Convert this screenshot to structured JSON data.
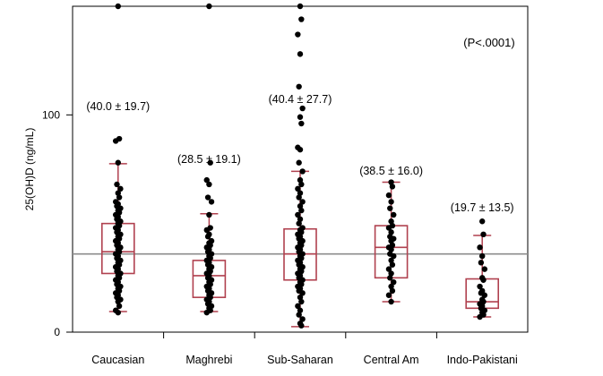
{
  "chart_data": {
    "type": "box",
    "ylabel": "25(OH)D (ng/mL)",
    "ylim": [
      0,
      150
    ],
    "y_ticks": [
      0,
      100
    ],
    "categories": [
      "Caucasian",
      "Maghrebi",
      "Sub-Saharan",
      "Central Am",
      "Indo-Pakistani"
    ],
    "annotation_text": "(P<.0001)",
    "reference_line": 36,
    "mean_sd_labels": [
      "(40.0 ± 19.7)",
      "(28.5 ± 19.1)",
      "(40.4 ± 27.7)",
      "(38.5 ± 16.0)",
      "(19.7 ± 13.5)"
    ],
    "groups": [
      {
        "category": "Caucasian",
        "whisker_low": 9.5,
        "q1": 27,
        "median": 37,
        "q3": 50,
        "whisker_high": 77.5,
        "points": [
          150,
          89,
          88,
          78,
          68,
          66,
          64,
          62,
          60,
          59,
          58,
          57,
          56,
          55,
          54,
          53,
          52,
          51,
          50,
          49,
          48,
          47,
          46,
          45,
          44,
          43,
          42,
          41,
          40,
          39,
          38,
          37,
          36,
          35,
          34,
          33,
          32,
          31,
          30,
          29,
          28,
          27,
          26,
          25,
          24,
          23,
          22,
          21,
          20,
          19,
          18,
          17,
          16,
          15,
          14,
          12,
          10,
          9
        ]
      },
      {
        "category": "Maghrebi",
        "whisker_low": 9.5,
        "q1": 16,
        "median": 26,
        "q3": 33,
        "whisker_high": 54.5,
        "points": [
          150,
          78,
          70,
          68,
          62,
          60,
          54,
          48,
          47,
          45,
          44,
          42,
          41,
          40,
          39,
          38,
          37,
          36,
          35,
          34,
          33,
          32,
          31,
          30,
          29,
          28,
          27,
          26,
          25,
          24,
          23,
          22,
          21,
          20,
          19,
          18,
          17,
          16,
          15,
          14,
          13,
          12,
          11,
          10,
          9
        ]
      },
      {
        "category": "Sub-Saharan",
        "whisker_low": 2.5,
        "q1": 24,
        "median": 36,
        "q3": 47.5,
        "whisker_high": 74,
        "points": [
          150,
          144,
          137,
          128,
          113,
          103,
          99,
          96,
          85,
          84,
          78,
          74,
          70,
          68,
          66,
          64,
          62,
          60,
          58,
          56,
          54,
          52,
          50,
          48,
          47,
          46,
          45,
          44,
          43,
          42,
          41,
          40,
          39,
          38,
          37,
          36,
          35,
          34,
          33,
          32,
          31,
          30,
          29,
          28,
          27,
          26,
          25,
          24,
          23,
          22,
          21,
          20,
          19,
          18,
          16,
          14,
          12,
          10,
          8,
          6,
          4,
          3
        ]
      },
      {
        "category": "Central Am",
        "whisker_low": 14,
        "q1": 25,
        "median": 39,
        "q3": 49,
        "whisker_high": 69,
        "points": [
          69,
          67,
          63,
          60,
          57,
          54,
          51,
          49,
          48,
          46,
          44,
          43,
          42,
          40,
          39,
          38,
          36,
          35,
          33,
          31,
          29,
          27,
          25,
          23,
          21,
          19,
          17,
          14
        ]
      },
      {
        "category": "Indo-Pakistani",
        "whisker_low": 7,
        "q1": 11,
        "median": 14,
        "q3": 24.5,
        "whisker_high": 44.5,
        "points": [
          51,
          45,
          39,
          35,
          32,
          29,
          25,
          24,
          21,
          19,
          18,
          17,
          15,
          14,
          13,
          12,
          11,
          10,
          9,
          8,
          7
        ]
      }
    ]
  }
}
